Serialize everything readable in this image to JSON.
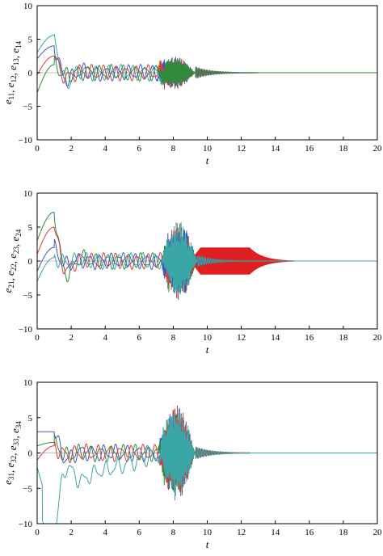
{
  "chart_data": [
    {
      "type": "line",
      "xlabel": "t",
      "ylabel_parts": [
        {
          "base": "e",
          "sub": "11"
        },
        {
          "sep": ", "
        },
        {
          "base": "e",
          "sub": "12"
        },
        {
          "sep": ", "
        },
        {
          "base": "e",
          "sub": "13"
        },
        {
          "sep": ", "
        },
        {
          "base": "e",
          "sub": "14"
        }
      ],
      "xlim": [
        0,
        20
      ],
      "ylim": [
        -10,
        10
      ],
      "xticks": [
        "0",
        "2",
        "4",
        "6",
        "8",
        "10",
        "12",
        "14",
        "16",
        "18",
        "20"
      ],
      "yticks": [
        "10",
        "5",
        "0",
        "−5",
        "−10"
      ],
      "series": [
        {
          "color": "#3aa6a6",
          "initial": 3.0,
          "peak": 5.6,
          "offset": 0.0
        },
        {
          "color": "#3f55c4",
          "initial": 2.1,
          "peak": 4.0,
          "offset": 0.0
        },
        {
          "color": "#e03a3a",
          "initial": -0.3,
          "peak": 2.5,
          "offset": 0.0
        },
        {
          "color": "#2e8b3e",
          "initial": -3.0,
          "peak": 1.2,
          "offset": 0.0
        }
      ],
      "burst_window": [
        7.5,
        9.3
      ],
      "burst_amplitude": 2.5,
      "decay_end": 13.0
    },
    {
      "type": "line",
      "xlabel": "t",
      "ylabel_parts": [
        {
          "base": "e",
          "sub": "21"
        },
        {
          "sep": ", "
        },
        {
          "base": "e",
          "sub": "22"
        },
        {
          "sep": ", "
        },
        {
          "base": "e",
          "sub": "23"
        },
        {
          "sep": ", "
        },
        {
          "base": "e",
          "sub": "24"
        }
      ],
      "xlim": [
        0,
        20
      ],
      "ylim": [
        -10,
        10
      ],
      "xticks": [
        "0",
        "2",
        "4",
        "6",
        "8",
        "10",
        "12",
        "14",
        "16",
        "18",
        "20"
      ],
      "yticks": [
        "10",
        "5",
        "0",
        "−5",
        "−10"
      ],
      "series": [
        {
          "color": "#2e8b3e",
          "initial": 3.0,
          "peak": 7.2,
          "offset": 0.0
        },
        {
          "color": "#e03a3a",
          "initial": 1.0,
          "peak": 5.0,
          "offset": 0.0
        },
        {
          "color": "#3f55c4",
          "initial": -1.5,
          "peak": 2.0,
          "offset": 0.0
        },
        {
          "color": "#3aa6a6",
          "initial": -3.0,
          "peak": 0.5,
          "offset": 0.0
        }
      ],
      "burst_window": [
        7.8,
        9.4
      ],
      "burst_amplitude": 6.0,
      "band_color": "#e02020",
      "band_window": [
        9.0,
        16.0
      ],
      "band_amplitude": 2.0,
      "decay_end": 16.0
    },
    {
      "type": "line",
      "xlabel": "t",
      "ylabel_parts": [
        {
          "base": "e",
          "sub": "31"
        },
        {
          "sep": ", "
        },
        {
          "base": "e",
          "sub": "32"
        },
        {
          "sep": ", "
        },
        {
          "base": "e",
          "sub": "33"
        },
        {
          "sep": ", "
        },
        {
          "base": "e",
          "sub": "34"
        }
      ],
      "xlim": [
        0,
        20
      ],
      "ylim": [
        -10,
        10
      ],
      "xticks": [
        "0",
        "2",
        "4",
        "6",
        "8",
        "10",
        "12",
        "14",
        "16",
        "18",
        "20"
      ],
      "yticks": [
        "10",
        "5",
        "0",
        "−5",
        "−10"
      ],
      "series": [
        {
          "color": "#3f55c4",
          "initial": 3.0,
          "peak": 3.0,
          "offset": 0.0
        },
        {
          "color": "#2e8b3e",
          "initial": 1.0,
          "peak": 1.5,
          "offset": 0.0
        },
        {
          "color": "#e03a3a",
          "initial": -1.0,
          "peak": 1.0,
          "offset": 0.0
        },
        {
          "color": "#3aa6a6",
          "initial": -2.0,
          "peak": -7.5,
          "offset": -5.0
        }
      ],
      "burst_window": [
        7.6,
        9.3
      ],
      "burst_amplitude": 7.0,
      "decay_end": 12.5
    }
  ]
}
